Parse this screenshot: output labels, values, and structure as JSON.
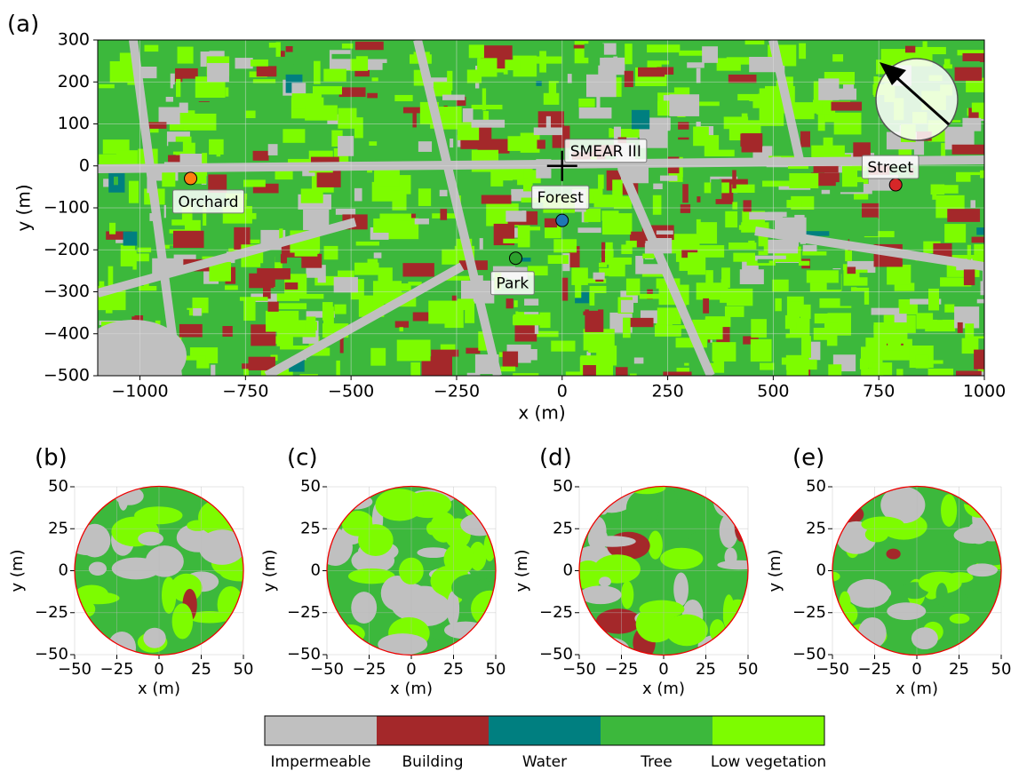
{
  "main": {
    "label": "(a)",
    "xlabel": "x (m)",
    "ylabel": "y (m)",
    "xlim": [
      -1100,
      1000
    ],
    "ylim": [
      -500,
      300
    ],
    "xticks": [
      {
        "value": -1000,
        "label": "−1000"
      },
      {
        "value": -750,
        "label": "−750"
      },
      {
        "value": -500,
        "label": "−500"
      },
      {
        "value": -250,
        "label": "−250"
      },
      0,
      250,
      500,
      750,
      1000
    ],
    "yticks": [
      {
        "value": -500,
        "label": "−500"
      },
      {
        "value": -400,
        "label": "−400"
      },
      {
        "value": -300,
        "label": "−300"
      },
      {
        "value": -200,
        "label": "−200"
      },
      {
        "value": -100,
        "label": "−100"
      },
      0,
      100,
      200,
      300
    ],
    "grid": true,
    "tower": {
      "name": "SMEAR III",
      "x": 0,
      "y": 0
    },
    "sites": [
      {
        "name": "Orchard",
        "x": -880,
        "y": -30,
        "color": "#ff7f0e"
      },
      {
        "name": "Forest",
        "x": 0,
        "y": -130,
        "color": "#1f77b4"
      },
      {
        "name": "Park",
        "x": -110,
        "y": -220,
        "color": "#2ca02c"
      },
      {
        "name": "Street",
        "x": 790,
        "y": -45,
        "color": "#d62728"
      }
    ]
  },
  "inset_axes": {
    "xlabel": "x (m)",
    "ylabel": "y (m)",
    "xlim": [
      -50,
      50
    ],
    "ylim": [
      -50,
      50
    ],
    "xticks": [
      {
        "value": -50,
        "label": "−50"
      },
      {
        "value": -25,
        "label": "−25"
      },
      0,
      25,
      50
    ],
    "yticks": [
      {
        "value": -50,
        "label": "−50"
      },
      {
        "value": -25,
        "label": "−25"
      },
      0,
      25,
      50
    ]
  },
  "insets": [
    {
      "label": "(b)"
    },
    {
      "label": "(c)"
    },
    {
      "label": "(d)"
    },
    {
      "label": "(e)"
    }
  ],
  "legend": {
    "categories": [
      {
        "name": "Impermeable",
        "color": "#c0c0c0"
      },
      {
        "name": "Building",
        "color": "#a4282a"
      },
      {
        "name": "Water",
        "color": "#007f80"
      },
      {
        "name": "Tree",
        "color": "#3cb83c"
      },
      {
        "name": "Low vegetation",
        "color": "#7dfc00"
      }
    ]
  }
}
